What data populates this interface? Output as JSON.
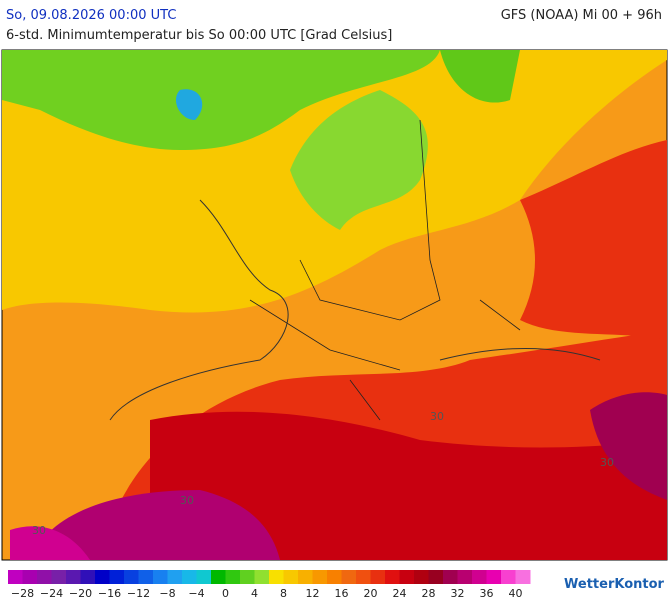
{
  "header": {
    "valid_time": "So, 09.08.2026 00:00 UTC",
    "model_run": "GFS (NOAA) Mi 00 + 96h",
    "subtitle": "6-std. Minimumtemperatur bis So 00:00 UTC [Grad Celsius]"
  },
  "map": {
    "contour_labels": [
      "30",
      "30",
      "30",
      "30"
    ]
  },
  "legend": {
    "colors": [
      "#c000c0",
      "#a800b0",
      "#9010a8",
      "#7820a8",
      "#5a18b0",
      "#3010b8",
      "#0000c8",
      "#0020d8",
      "#0840e0",
      "#1060e8",
      "#1880f0",
      "#20a0f0",
      "#18b8e8",
      "#10c8d0",
      "#00b800",
      "#30c810",
      "#60d020",
      "#90e030",
      "#f8e000",
      "#f8c800",
      "#f8b000",
      "#f89800",
      "#f88000",
      "#f06810",
      "#f05010",
      "#e83010",
      "#e01010",
      "#c80010",
      "#b00010",
      "#980020",
      "#a00050",
      "#b80070",
      "#d00090",
      "#e800b0",
      "#f840d0",
      "#f870e0"
    ],
    "labels": [
      "−28",
      "−24",
      "−20",
      "−16",
      "−12",
      "−8",
      "−4",
      "0",
      "4",
      "8",
      "12",
      "16",
      "20",
      "24",
      "28",
      "32",
      "36",
      "40"
    ]
  },
  "brand": "WetterKontor"
}
